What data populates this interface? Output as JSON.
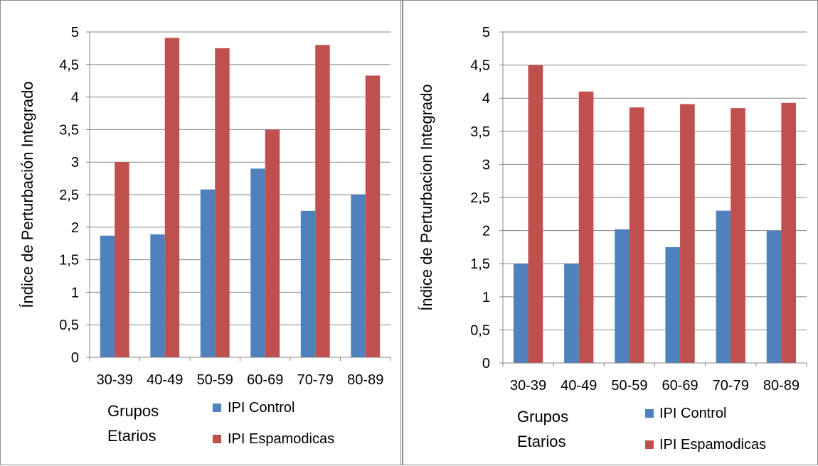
{
  "colors": {
    "control": "#4f81bd",
    "espasmodicas": "#c0504d",
    "grid": "#868686",
    "axis": "#868686"
  },
  "chart_data": [
    {
      "type": "bar",
      "categories": [
        "30-39",
        "40-49",
        "50-59",
        "60-69",
        "70-79",
        "80-89"
      ],
      "series": [
        {
          "name": "IPI Control",
          "values": [
            1.87,
            1.89,
            2.58,
            2.9,
            2.25,
            2.5
          ]
        },
        {
          "name": "IPI Espamodicas",
          "values": [
            3.0,
            4.91,
            4.75,
            3.5,
            4.8,
            4.33
          ]
        }
      ],
      "yticks": [
        "0",
        "0,5",
        "1",
        "1,5",
        "2",
        "2,5",
        "3",
        "3,5",
        "4",
        "4,5",
        "5"
      ],
      "ylim": [
        0,
        5
      ],
      "ylabel": "Índice de Perturbación Integrado",
      "xlabel_line1": "Grupos",
      "xlabel_line2": "Etarios",
      "grid": true,
      "legend_position": "bottom"
    },
    {
      "type": "bar",
      "categories": [
        "30-39",
        "40-49",
        "50-59",
        "60-69",
        "70-79",
        "80-89"
      ],
      "series": [
        {
          "name": "IPI Control",
          "values": [
            1.5,
            1.5,
            2.02,
            1.75,
            2.3,
            2.0
          ]
        },
        {
          "name": "IPI Espamodicas",
          "values": [
            4.5,
            4.1,
            3.86,
            3.91,
            3.85,
            3.93
          ]
        }
      ],
      "yticks": [
        "0",
        "0,5",
        "1",
        "1,5",
        "2",
        "2,5",
        "3",
        "3,5",
        "4",
        "4,5",
        "5"
      ],
      "ylim": [
        0,
        5
      ],
      "ylabel": "Índice de Perturbacion Integrado",
      "xlabel_line1": "Grupos",
      "xlabel_line2": "Etarios",
      "grid": true,
      "legend_position": "bottom"
    }
  ]
}
